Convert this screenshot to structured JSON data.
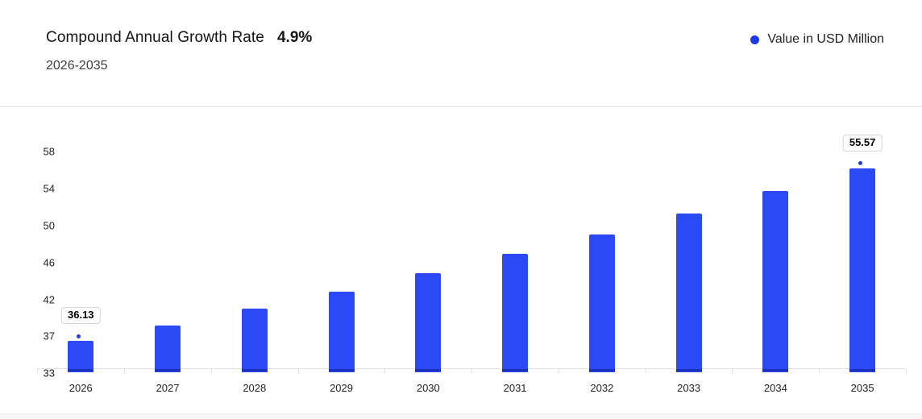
{
  "header": {
    "title": "Compound Annual Growth Rate",
    "cagr_value": "4.9%",
    "period": "2026-2035",
    "legend": {
      "label": "Value in USD Million",
      "dot_color": "#1d39ee"
    }
  },
  "chart_data": {
    "type": "bar",
    "title": "Compound Annual Growth Rate 4.9% 2026-2035",
    "categories": [
      "2026",
      "2027",
      "2028",
      "2029",
      "2030",
      "2031",
      "2032",
      "2033",
      "2034",
      "2035"
    ],
    "series": [
      {
        "name": "Value in USD Million",
        "values": [
          36.13,
          37.9,
          39.76,
          41.71,
          43.75,
          45.89,
          48.14,
          50.5,
          52.98,
          55.57
        ]
      }
    ],
    "xlabel": "",
    "ylabel": "",
    "y_tick_labels": [
      "33",
      "37",
      "42",
      "46",
      "50",
      "54",
      "58"
    ],
    "ylim": [
      33,
      58.2
    ],
    "grid": false,
    "legend_position": "top-right",
    "bar_color": "#2b4af5",
    "marker_color": "#1d39ee",
    "marker_indices": [
      0,
      9
    ],
    "data_labels": [
      {
        "index": 0,
        "text": "36.13"
      },
      {
        "index": 9,
        "text": "55.57"
      }
    ]
  }
}
